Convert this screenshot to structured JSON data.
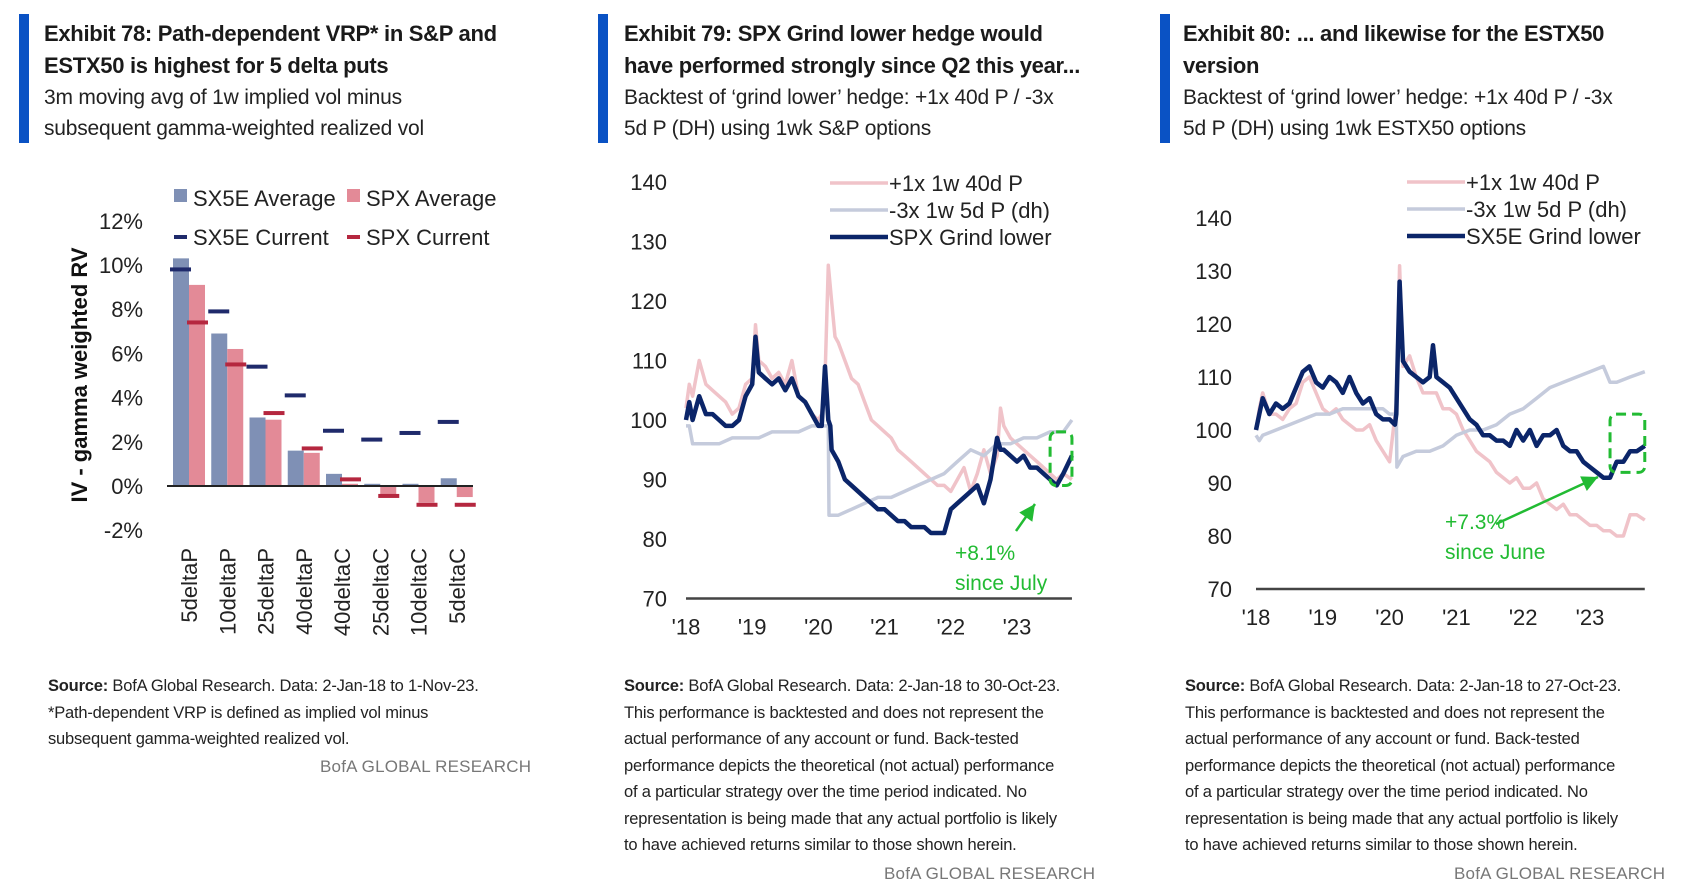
{
  "exhibits": [
    {
      "title_line1": "Exhibit 78: Path-dependent VRP* in S&P and",
      "title_line2": "ESTX50 is highest for 5 delta puts",
      "subtitle_line1": "3m moving avg of 1w implied vol minus",
      "subtitle_line2": "subsequent gamma-weighted  realized vol",
      "source_label": "Source:",
      "source_lines": [
        " BofA Global Research. Data: 2-Jan-18 to 1-Nov-23.",
        "*Path-dependent VRP is defined as implied vol minus",
        "subsequent gamma-weighted realized vol."
      ],
      "brand": "BofA GLOBAL RESEARCH"
    },
    {
      "title_line1": "Exhibit 79: SPX Grind lower hedge  would",
      "title_line2": "have performed  strongly since Q2 this year...",
      "subtitle_line1": "Backtest of ‘grind lower’ hedge: +1x 40d P / -3x",
      "subtitle_line2": "5d P (DH) using  1wk S&P options",
      "source_label": "Source:",
      "source_lines": [
        " BofA Global Research. Data: 2-Jan-18 to 30-Oct-23.",
        "This performance is backtested and does not represent the",
        "actual performance of any account or fund. Back-tested",
        "performance depicts the theoretical (not actual) performance",
        "of a particular strategy over the time period indicated. No",
        "representation is being made that any actual portfolio is likely",
        "to have achieved returns similar to those shown herein."
      ],
      "brand": "BofA GLOBAL RESEARCH"
    },
    {
      "title_line1": "Exhibit 80: ... and likewise for the ESTX50",
      "title_line2": "version",
      "subtitle_line1": "Backtest of ‘grind lower’ hedge: +1x 40d P / -3x",
      "subtitle_line2": "5d P (DH) using  1wk ESTX50 options",
      "source_label": "Source:",
      "source_lines": [
        " BofA Global Research. Data: 2-Jan-18 to 27-Oct-23.",
        "This performance is backtested and does not represent the",
        "actual performance of any account or fund. Back-tested",
        "performance depicts the theoretical (not actual) performance",
        "of a particular strategy over the time period indicated. No",
        "representation is being made that any actual portfolio is likely",
        "to have achieved returns similar to those shown herein."
      ],
      "brand": "BofA GLOBAL RESEARCH"
    }
  ],
  "colors": {
    "accent": "#0a52c4",
    "sx5e_avg": "#7f90b5",
    "spx_avg": "#e38a97",
    "sx5e_cur": "#1f2a6b",
    "spx_cur": "#b5273f",
    "leg_40d": "#f0c3c9",
    "leg_5d": "#c5cbdc",
    "grind": "#0b2569",
    "annotation": "#22bb33"
  },
  "chart_data": [
    {
      "type": "bar",
      "title": "Exhibit 78: Path-dependent VRP* in S&P and ESTX50 is highest for 5 delta puts",
      "ylabel": "IV - gamma weighted RV",
      "xlabel": "",
      "ylim": [
        -2,
        12
      ],
      "yticks": [
        "-2%",
        "0%",
        "2%",
        "4%",
        "6%",
        "8%",
        "10%",
        "12%"
      ],
      "ytick_values": [
        -2,
        0,
        2,
        4,
        6,
        8,
        10,
        12
      ],
      "categories": [
        "5deltaP",
        "10deltaP",
        "25deltaP",
        "40deltaP",
        "40deltaC",
        "25deltaC",
        "10deltaC",
        "5deltaC"
      ],
      "legend": [
        "SX5E Average",
        "SPX Average",
        "SX5E Current",
        "SPX Current"
      ],
      "legend_position": "top",
      "series": [
        {
          "name": "SX5E Average",
          "kind": "bar",
          "values": [
            10.3,
            6.9,
            3.1,
            1.6,
            0.55,
            0.1,
            0.1,
            0.35
          ]
        },
        {
          "name": "SPX Average",
          "kind": "bar",
          "values": [
            9.1,
            6.2,
            3.0,
            1.5,
            0.1,
            -0.45,
            -0.75,
            -0.5
          ]
        },
        {
          "name": "SX5E Current",
          "kind": "marker",
          "values": [
            9.8,
            7.9,
            5.4,
            4.1,
            2.5,
            2.1,
            2.4,
            2.9
          ]
        },
        {
          "name": "SPX Current",
          "kind": "marker",
          "values": [
            7.4,
            5.5,
            3.3,
            1.7,
            0.3,
            -0.45,
            -0.85,
            -0.85
          ]
        }
      ],
      "grid": false
    },
    {
      "type": "line",
      "title": "Exhibit 79: SPX Grind lower hedge would have performed strongly since Q2 this year...",
      "xlabel": "",
      "ylabel": "",
      "ylim": [
        70,
        140
      ],
      "yticks": [
        "70",
        "80",
        "90",
        "100",
        "110",
        "120",
        "130",
        "140"
      ],
      "ytick_values": [
        70,
        80,
        90,
        100,
        110,
        120,
        130,
        140
      ],
      "xlim": [
        2018.0,
        2023.83
      ],
      "xticks": [
        "'18",
        "'19",
        "'20",
        "'21",
        "'22",
        "'23"
      ],
      "xtick_values": [
        2018,
        2019,
        2020,
        2021,
        2022,
        2023
      ],
      "legend_position": "top-right",
      "legend": [
        "+1x 1w 40d P",
        "-3x 1w 5d P (dh)",
        "SPX Grind lower"
      ],
      "annotation": {
        "line1": "+8.1%",
        "line2": "since July",
        "box_x": [
          2023.5,
          2023.83
        ],
        "box_y": [
          89,
          98
        ]
      },
      "series": [
        {
          "name": "+1x 1w 40d P",
          "x": [
            2018.0,
            2018.05,
            2018.1,
            2018.2,
            2018.3,
            2018.4,
            2018.5,
            2018.6,
            2018.7,
            2018.8,
            2018.9,
            2019.0,
            2019.05,
            2019.1,
            2019.2,
            2019.3,
            2019.4,
            2019.5,
            2019.6,
            2019.7,
            2019.8,
            2019.9,
            2020.0,
            2020.05,
            2020.1,
            2020.15,
            2020.2,
            2020.25,
            2020.3,
            2020.4,
            2020.5,
            2020.6,
            2020.7,
            2020.8,
            2020.9,
            2021.0,
            2021.1,
            2021.2,
            2021.3,
            2021.4,
            2021.5,
            2021.6,
            2021.7,
            2021.8,
            2021.9,
            2022.0,
            2022.1,
            2022.2,
            2022.3,
            2022.4,
            2022.5,
            2022.6,
            2022.7,
            2022.75,
            2022.8,
            2022.9,
            2023.0,
            2023.1,
            2023.2,
            2023.3,
            2023.4,
            2023.5,
            2023.6,
            2023.7,
            2023.83
          ],
          "y": [
            102,
            106,
            104,
            110,
            106,
            105,
            104,
            103,
            101,
            102,
            106,
            107,
            116,
            110,
            109,
            107,
            108,
            106,
            110,
            104,
            103,
            101,
            100,
            101,
            107,
            126,
            120,
            114,
            113,
            110,
            107,
            106,
            103,
            100,
            99,
            98,
            97,
            95,
            94,
            93,
            92,
            91,
            90,
            89,
            89,
            88,
            90,
            92,
            88,
            91,
            95,
            91,
            94,
            102,
            99,
            97,
            96,
            95,
            94,
            93,
            92,
            91,
            90,
            91,
            90
          ]
        },
        {
          "name": "-3x 1w 5d P (dh)",
          "x": [
            2018.0,
            2018.05,
            2018.1,
            2018.3,
            2018.5,
            2018.7,
            2018.9,
            2019.1,
            2019.3,
            2019.5,
            2019.7,
            2019.9,
            2020.0,
            2020.15,
            2020.16,
            2020.2,
            2020.3,
            2020.5,
            2020.7,
            2020.9,
            2021.1,
            2021.3,
            2021.5,
            2021.7,
            2021.9,
            2022.1,
            2022.3,
            2022.5,
            2022.7,
            2022.9,
            2023.1,
            2023.3,
            2023.5,
            2023.7,
            2023.83
          ],
          "y": [
            99,
            99,
            96,
            96,
            96,
            97,
            97,
            97,
            98,
            98,
            98,
            99,
            99,
            99,
            84,
            84,
            84,
            85,
            86,
            87,
            87,
            88,
            89,
            90,
            91,
            93,
            95,
            94,
            96,
            96,
            97,
            97,
            98,
            98,
            100
          ]
        },
        {
          "name": "SPX Grind lower",
          "x": [
            2018.0,
            2018.05,
            2018.1,
            2018.2,
            2018.3,
            2018.4,
            2018.5,
            2018.6,
            2018.7,
            2018.8,
            2018.9,
            2019.0,
            2019.05,
            2019.1,
            2019.2,
            2019.3,
            2019.4,
            2019.5,
            2019.6,
            2019.7,
            2019.8,
            2019.9,
            2020.0,
            2020.05,
            2020.1,
            2020.15,
            2020.18,
            2020.2,
            2020.3,
            2020.4,
            2020.5,
            2020.6,
            2020.7,
            2020.8,
            2020.9,
            2021.0,
            2021.1,
            2021.2,
            2021.3,
            2021.4,
            2021.5,
            2021.6,
            2021.7,
            2021.8,
            2021.9,
            2022.0,
            2022.1,
            2022.2,
            2022.3,
            2022.4,
            2022.5,
            2022.6,
            2022.7,
            2022.75,
            2022.8,
            2022.9,
            2023.0,
            2023.1,
            2023.2,
            2023.3,
            2023.4,
            2023.5,
            2023.6,
            2023.7,
            2023.83
          ],
          "y": [
            100,
            103,
            100,
            104,
            101,
            101,
            100,
            99,
            99,
            100,
            104,
            106,
            114,
            108,
            107,
            106,
            107,
            105,
            107,
            104,
            103,
            101,
            99,
            99,
            109,
            100,
            99,
            95,
            93,
            90,
            89,
            88,
            87,
            86,
            85,
            85,
            84,
            83,
            83,
            82,
            82,
            82,
            81,
            81,
            81,
            85,
            86,
            87,
            88,
            89,
            86,
            90,
            97,
            95,
            95,
            94,
            93,
            94,
            92,
            92,
            91,
            90,
            89,
            91,
            94
          ]
        }
      ],
      "grid": false
    },
    {
      "type": "line",
      "title": "Exhibit 80: ... and likewise for the ESTX50 version",
      "xlabel": "",
      "ylabel": "",
      "ylim": [
        70,
        140
      ],
      "yticks": [
        "70",
        "80",
        "90",
        "100",
        "110",
        "120",
        "130",
        "140"
      ],
      "ytick_values": [
        70,
        80,
        90,
        100,
        110,
        120,
        130,
        140
      ],
      "xlim": [
        2018.0,
        2023.82
      ],
      "xticks": [
        "'18",
        "'19",
        "'20",
        "'21",
        "'22",
        "'23"
      ],
      "xtick_values": [
        2018,
        2019,
        2020,
        2021,
        2022,
        2023
      ],
      "legend_position": "top-right",
      "legend": [
        "+1x 1w 40d P",
        "-3x 1w 5d P (dh)",
        "SX5E Grind lower"
      ],
      "annotation": {
        "line1": "+7.3%",
        "line2": "since June",
        "box_x": [
          2023.3,
          2023.82
        ],
        "box_y": [
          92,
          103
        ]
      },
      "series": [
        {
          "name": "+1x 1w 40d P",
          "x": [
            2018.0,
            2018.05,
            2018.1,
            2018.2,
            2018.3,
            2018.4,
            2018.5,
            2018.6,
            2018.7,
            2018.8,
            2018.9,
            2019.0,
            2019.1,
            2019.2,
            2019.3,
            2019.4,
            2019.5,
            2019.6,
            2019.7,
            2019.8,
            2019.9,
            2020.0,
            2020.1,
            2020.15,
            2020.2,
            2020.3,
            2020.4,
            2020.5,
            2020.6,
            2020.7,
            2020.8,
            2020.9,
            2021.0,
            2021.1,
            2021.2,
            2021.3,
            2021.4,
            2021.5,
            2021.6,
            2021.7,
            2021.8,
            2021.9,
            2022.0,
            2022.1,
            2022.2,
            2022.3,
            2022.4,
            2022.5,
            2022.6,
            2022.7,
            2022.8,
            2022.9,
            2023.0,
            2023.1,
            2023.2,
            2023.3,
            2023.4,
            2023.5,
            2023.6,
            2023.7,
            2023.82
          ],
          "y": [
            100,
            104,
            107,
            103,
            103,
            102,
            104,
            105,
            109,
            110,
            107,
            104,
            103,
            104,
            102,
            101,
            100,
            100,
            101,
            98,
            96,
            94,
            105,
            131,
            112,
            114,
            110,
            107,
            107,
            107,
            104,
            104,
            103,
            100,
            98,
            96,
            95,
            94,
            92,
            91,
            90,
            91,
            89,
            89,
            90,
            87,
            86,
            85,
            86,
            84,
            84,
            83,
            82,
            82,
            81,
            81,
            80,
            80,
            84,
            84,
            83
          ]
        },
        {
          "name": "-3x 1w 5d P (dh)",
          "x": [
            2018.0,
            2018.05,
            2018.1,
            2018.3,
            2018.5,
            2018.7,
            2018.9,
            2019.1,
            2019.3,
            2019.5,
            2019.7,
            2019.9,
            2020.0,
            2020.1,
            2020.11,
            2020.2,
            2020.4,
            2020.6,
            2020.8,
            2021.0,
            2021.2,
            2021.4,
            2021.6,
            2021.8,
            2022.0,
            2022.2,
            2022.4,
            2022.6,
            2022.8,
            2023.0,
            2023.2,
            2023.3,
            2023.4,
            2023.6,
            2023.82
          ],
          "y": [
            99,
            98,
            99,
            100,
            101,
            102,
            103,
            103,
            104,
            104,
            104,
            104,
            103,
            103,
            93,
            95,
            96,
            96,
            97,
            99,
            100,
            100,
            101,
            103,
            104,
            106,
            108,
            109,
            110,
            111,
            112,
            109,
            109,
            110,
            111
          ]
        },
        {
          "name": "SX5E Grind lower",
          "x": [
            2018.0,
            2018.05,
            2018.1,
            2018.2,
            2018.3,
            2018.4,
            2018.5,
            2018.6,
            2018.7,
            2018.8,
            2018.9,
            2019.0,
            2019.1,
            2019.2,
            2019.3,
            2019.4,
            2019.5,
            2019.6,
            2019.7,
            2019.8,
            2019.9,
            2020.0,
            2020.08,
            2020.1,
            2020.15,
            2020.2,
            2020.3,
            2020.4,
            2020.5,
            2020.6,
            2020.65,
            2020.7,
            2020.8,
            2020.9,
            2021.0,
            2021.1,
            2021.2,
            2021.3,
            2021.4,
            2021.5,
            2021.6,
            2021.7,
            2021.8,
            2021.9,
            2022.0,
            2022.1,
            2022.2,
            2022.3,
            2022.4,
            2022.5,
            2022.6,
            2022.7,
            2022.8,
            2022.9,
            2023.0,
            2023.1,
            2023.2,
            2023.3,
            2023.4,
            2023.5,
            2023.6,
            2023.7,
            2023.82
          ],
          "y": [
            100,
            103,
            106,
            103,
            105,
            104,
            105,
            108,
            111,
            112,
            109,
            108,
            110,
            109,
            107,
            110,
            107,
            105,
            106,
            103,
            102,
            102,
            101,
            103,
            128,
            113,
            111,
            110,
            109,
            110,
            116,
            110,
            109,
            108,
            106,
            104,
            102,
            101,
            99,
            99,
            98,
            98,
            97,
            100,
            98,
            100,
            97,
            99,
            99,
            100,
            97,
            96,
            96,
            94,
            93,
            92,
            91,
            91,
            94,
            94,
            96,
            96,
            97
          ]
        }
      ],
      "grid": false
    }
  ]
}
